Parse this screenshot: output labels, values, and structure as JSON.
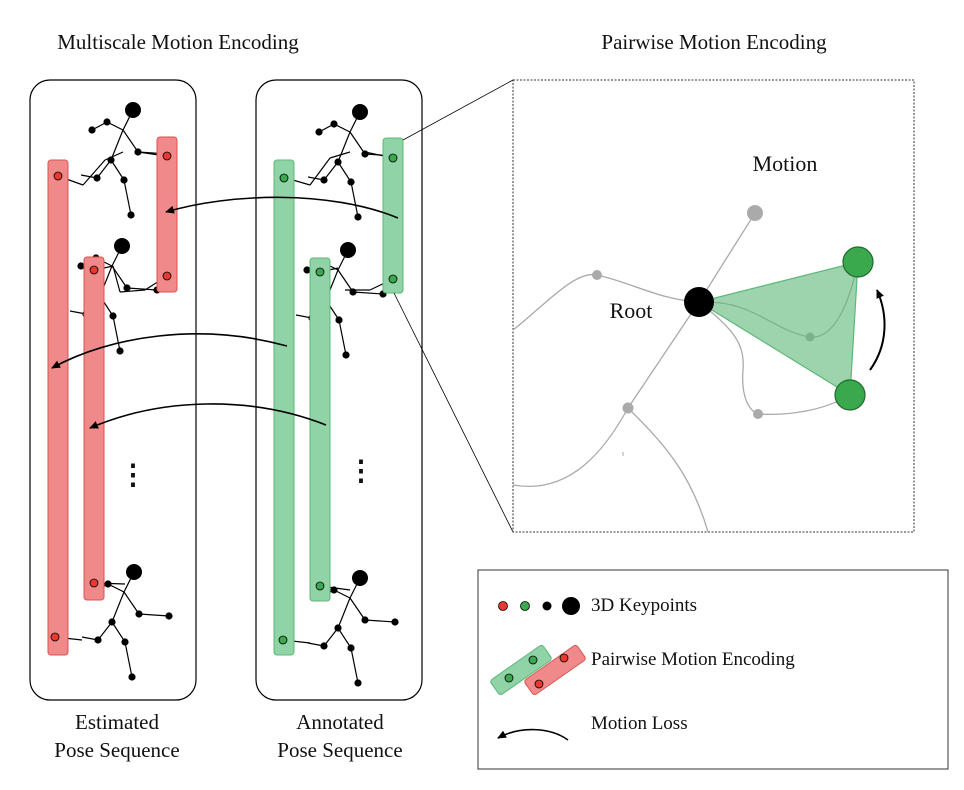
{
  "titles": {
    "left": "Multiscale Motion Encoding",
    "right": "Pairwise Motion Encoding"
  },
  "captions": {
    "estimated_line1": "Estimated",
    "estimated_line2": "Pose Sequence",
    "annotated_line1": "Annotated",
    "annotated_line2": "Pose Sequence"
  },
  "zoom": {
    "motion_label": "Motion",
    "root_label": "Root"
  },
  "legend": {
    "keypoints": "3D Keypoints",
    "pairwise": "Pairwise Motion Encoding",
    "loss": "Motion Loss"
  },
  "ellipsis": "⋮",
  "colors": {
    "red_fill": "#f08a8a",
    "red_stroke": "#d9534f",
    "red_dot": "#e8392f",
    "green_fill": "#8fd3a6",
    "green_stroke": "#5cb877",
    "green_dot": "#3aa84c",
    "grey": "#aaaaaa",
    "black": "#000000"
  }
}
